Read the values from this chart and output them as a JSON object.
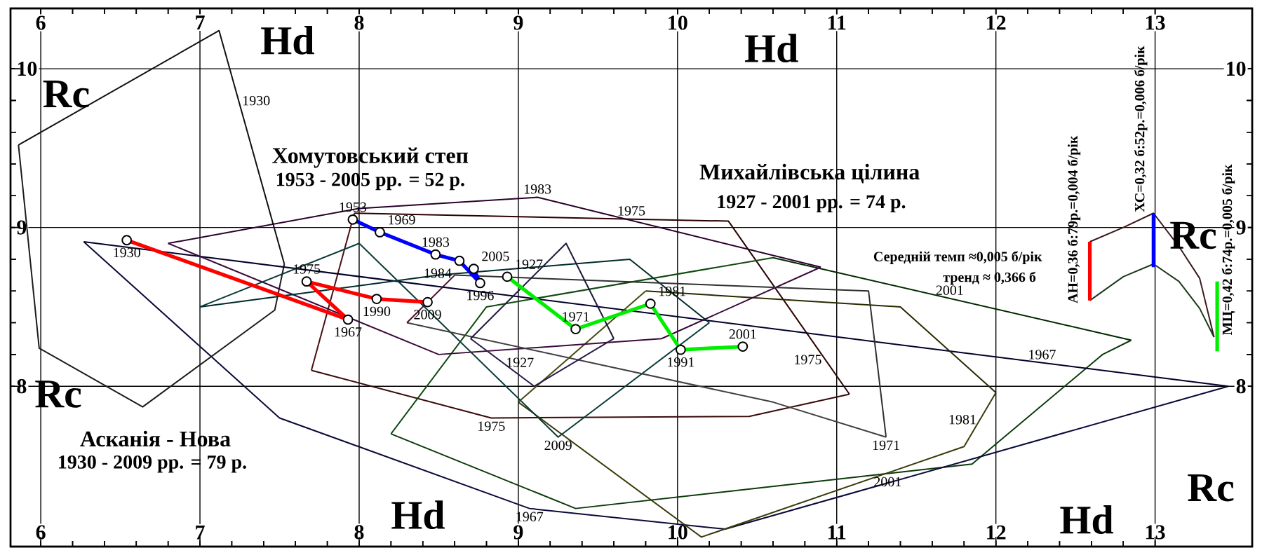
{
  "chart_data": {
    "type": "line",
    "xlabel": "Hd",
    "x2label": "Hd",
    "ylabel": "Rc",
    "y2label": "Rc",
    "xlim": [
      5.81,
      13.61
    ],
    "ylim": [
      6.99,
      10.38
    ],
    "x2lim": [
      5.81,
      13.61
    ],
    "y2lim": [
      6.99,
      10.38
    ],
    "xticks": [
      6,
      7,
      8,
      9,
      10,
      11,
      12,
      13
    ],
    "x2ticks": [
      6,
      7,
      8,
      9,
      10,
      11,
      12,
      13
    ],
    "yticks": [
      8,
      9,
      10
    ],
    "y2ticks": [
      8,
      9,
      10
    ],
    "grid": true,
    "marker": "circle",
    "line_style": "solid",
    "series": [
      {
        "color": "#101010",
        "marker": "none",
        "x": [
          5.86,
          7.12,
          7.53
        ],
        "values": [
          9.52,
          10.24,
          8.77
        ]
      },
      {
        "color": "#1c1c1c",
        "marker": "none",
        "x": [
          5.86,
          5.99,
          6.64,
          7.47,
          7.53
        ],
        "values": [
          9.52,
          8.24,
          7.87,
          8.48,
          8.77
        ]
      },
      {
        "color": "#2a0000",
        "marker": "none",
        "x": [
          7.97,
          10.32,
          11.08
        ],
        "values": [
          9.09,
          9.04,
          7.95
        ]
      },
      {
        "color": "#3a0a0a",
        "marker": "none",
        "x": [
          7.7,
          8.83,
          10.45,
          11.08
        ],
        "values": [
          8.1,
          7.8,
          7.81,
          7.95
        ]
      },
      {
        "color": "#4a1010",
        "marker": "none",
        "x": [
          7.7,
          7.97
        ],
        "values": [
          8.1,
          9.09
        ]
      },
      {
        "color": "#002a00",
        "marker": "none",
        "x": [
          10.6,
          12.85
        ],
        "values": [
          8.81,
          8.29
        ]
      },
      {
        "color": "#0a3a0a",
        "marker": "none",
        "x": [
          8.2,
          9.36,
          11.85,
          12.67,
          12.85
        ],
        "values": [
          7.7,
          7.23,
          7.51,
          8.2,
          8.29
        ]
      },
      {
        "color": "#104a10",
        "marker": "none",
        "x": [
          8.2,
          8.8,
          10.6
        ],
        "values": [
          7.7,
          8.5,
          8.81
        ]
      },
      {
        "color": "#00002a",
        "marker": "none",
        "x": [
          6.27,
          13.46
        ],
        "values": [
          8.91,
          8.0
        ]
      },
      {
        "color": "#0a0a3a",
        "marker": "none",
        "x": [
          6.27,
          7.5,
          9.07,
          10.3,
          13.46
        ],
        "values": [
          8.91,
          7.8,
          7.23,
          7.1,
          8.0
        ]
      },
      {
        "color": "#2a2a00",
        "marker": "none",
        "x": [
          9.8,
          11.4,
          12.0
        ],
        "values": [
          8.6,
          8.5,
          7.96
        ]
      },
      {
        "color": "#3a3a0a",
        "marker": "none",
        "x": [
          9.0,
          10.15,
          11.8,
          12.0
        ],
        "values": [
          7.9,
          7.05,
          7.62,
          7.96
        ]
      },
      {
        "color": "#4a4a10",
        "marker": "none",
        "x": [
          9.0,
          9.8
        ],
        "values": [
          7.9,
          8.6
        ]
      },
      {
        "color": "#2a002a",
        "marker": "none",
        "x": [
          6.8,
          8.0,
          9.12,
          10.9
        ],
        "values": [
          8.9,
          9.12,
          9.19,
          8.75
        ]
      },
      {
        "color": "#3a0a3a",
        "marker": "none",
        "x": [
          6.8,
          8.5,
          9.9,
          10.9
        ],
        "values": [
          8.9,
          8.2,
          8.3,
          8.75
        ]
      },
      {
        "color": "#002a2a",
        "marker": "none",
        "x": [
          7.0,
          8.5,
          9.7,
          10.2
        ],
        "values": [
          8.5,
          8.7,
          8.8,
          8.4
        ]
      },
      {
        "color": "#0a3a3a",
        "marker": "none",
        "x": [
          7.0,
          8.0,
          9.25,
          10.2
        ],
        "values": [
          8.5,
          8.9,
          7.68,
          8.4
        ]
      },
      {
        "color": "#303030",
        "marker": "none",
        "x": [
          8.6,
          11.2,
          11.31
        ],
        "values": [
          8.7,
          8.6,
          7.68
        ]
      },
      {
        "color": "#404040",
        "marker": "none",
        "x": [
          8.3,
          10.6,
          11.31
        ],
        "values": [
          8.4,
          7.9,
          7.68
        ]
      },
      {
        "color": "#4a0a2a",
        "marker": "none",
        "x": [
          8.3,
          8.6
        ],
        "values": [
          8.4,
          8.7
        ]
      },
      {
        "color": "#1a1a3a",
        "marker": "none",
        "x": [
          8.7,
          9.3,
          9.6
        ],
        "values": [
          8.3,
          8.9,
          8.3
        ]
      },
      {
        "color": "#2a1a4a",
        "marker": "none",
        "x": [
          8.7,
          9.1,
          9.6
        ],
        "values": [
          8.3,
          8.0,
          8.3
        ]
      },
      {
        "color": "#3a1a1a",
        "marker": "none",
        "x": [
          12.59,
          12.8,
          12.99,
          13.15,
          13.28,
          13.37
        ],
        "values": [
          8.91,
          9.0,
          9.09,
          8.88,
          8.68,
          8.31
        ]
      },
      {
        "color": "#1a3a1a",
        "marker": "none",
        "x": [
          12.59,
          12.8,
          12.99,
          13.15,
          13.28,
          13.37
        ],
        "values": [
          8.54,
          8.69,
          8.77,
          8.66,
          8.49,
          8.31
        ]
      },
      {
        "name": "АН=0,36 б:79р.=0,004 б/рік",
        "color": "#ff0000",
        "marker": "none",
        "x": [
          12.59,
          12.59
        ],
        "values": [
          8.54,
          8.91
        ]
      },
      {
        "name": "ХС=0,32 б:52р.=0,006 б/рік",
        "color": "#0000ff",
        "marker": "none",
        "x": [
          12.99,
          12.99
        ],
        "values": [
          8.75,
          9.09
        ]
      },
      {
        "name": "МЦ=0,42 б:74р.=0,005 б/рік",
        "color": "#00ee00",
        "marker": "none",
        "x": [
          13.39,
          13.39
        ],
        "values": [
          8.22,
          8.66
        ]
      },
      {
        "color": "#ff0000",
        "x": [
          6.54,
          7.93,
          7.67,
          8.11,
          8.43
        ],
        "values": [
          8.92,
          8.42,
          8.66,
          8.55,
          8.53
        ]
      },
      {
        "color": "#0000ff",
        "x": [
          7.96,
          8.13,
          8.48,
          8.63,
          8.76,
          8.72
        ],
        "values": [
          9.05,
          8.97,
          8.83,
          8.79,
          8.65,
          8.74
        ]
      },
      {
        "color": "#00ee00",
        "x": [
          8.93,
          9.36,
          9.83,
          10.02,
          10.41
        ],
        "values": [
          8.69,
          8.36,
          8.52,
          8.23,
          8.25
        ]
      }
    ],
    "annotations": [
      "Асканія - Нова",
      "1930 - 2009 рр. = 79 р.",
      "Хомутовський степ",
      "1953 - 2005 рр. = 52 р.",
      "Михайлівська цілина",
      "1927 - 2001 рр. = 74 р.",
      "Середній темп ≈0,005 б/рік",
      "тренд ≈ 0,366 б",
      "Hd",
      "Hd",
      "Rc",
      "Rc",
      {
        "text": "1930",
        "x": 6.54,
        "y": 8.92
      },
      {
        "text": "1967",
        "x": 7.93,
        "y": 8.42
      },
      {
        "text": "1975",
        "x": 7.67,
        "y": 8.66
      },
      {
        "text": "1990",
        "x": 8.11,
        "y": 8.55
      },
      {
        "text": "2009",
        "x": 8.43,
        "y": 8.53
      },
      {
        "text": "1953",
        "x": 7.96,
        "y": 9.05
      },
      {
        "text": "1969",
        "x": 8.13,
        "y": 8.97
      },
      {
        "text": "1983",
        "x": 8.48,
        "y": 8.83
      },
      {
        "text": "1984",
        "x": 8.63,
        "y": 8.79
      },
      {
        "text": "1996",
        "x": 8.76,
        "y": 8.65
      },
      {
        "text": "2005",
        "x": 8.72,
        "y": 8.74
      },
      {
        "text": "1927",
        "x": 8.93,
        "y": 8.69
      },
      {
        "text": "1971",
        "x": 9.36,
        "y": 8.36
      },
      {
        "text": "1981",
        "x": 9.83,
        "y": 8.52
      },
      {
        "text": "1991",
        "x": 10.02,
        "y": 8.23
      },
      {
        "text": "2001",
        "x": 10.41,
        "y": 8.25
      },
      {
        "text": "1930",
        "x": 7.243,
        "y": 9.799
      },
      {
        "text": "1983",
        "x": 9.12,
        "y": 9.19
      },
      {
        "text": "1975",
        "x": 9.71,
        "y": 9.053
      },
      {
        "text": "1927",
        "x": 8.9,
        "y": 8.15
      },
      {
        "text": "1975",
        "x": 8.83,
        "y": 7.8
      },
      {
        "text": "2009",
        "x": 9.25,
        "y": 7.68
      },
      {
        "text": "1967",
        "x": 9.07,
        "y": 7.23
      },
      {
        "text": "1975",
        "x": 10.928,
        "y": 8.168
      },
      {
        "text": "2001",
        "x": 11.71,
        "y": 8.553
      },
      {
        "text": "1967",
        "x": 12.29,
        "y": 8.148
      },
      {
        "text": "1981",
        "x": 11.9,
        "y": 7.79
      },
      {
        "text": "1971",
        "x": 11.31,
        "y": 7.68
      },
      {
        "text": "2001",
        "x": 11.32,
        "y": 7.45
      }
    ]
  }
}
